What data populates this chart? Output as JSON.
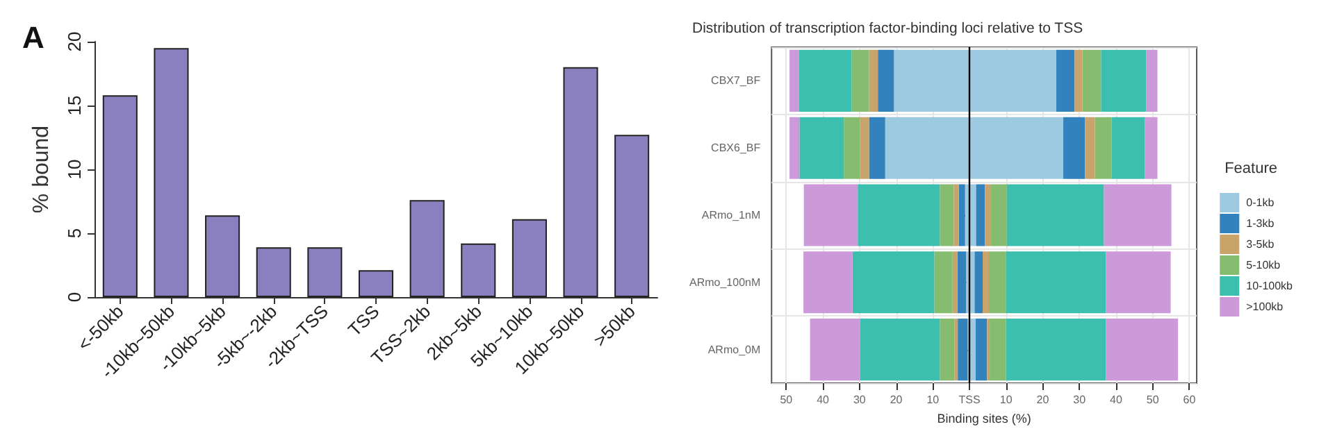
{
  "chart_data": [
    {
      "type": "bar",
      "annotations": [
        "A"
      ],
      "ylabel": "% bound",
      "categories": [
        "<-50kb",
        "-10kb~50kb",
        "-10kb~5kb",
        "-5kb~-2kb",
        "-2kb~TSS",
        "TSS",
        "TSS~2kb",
        "2kb~5kb",
        "5kb~10kb",
        "10kb~50kb",
        ">50kb"
      ],
      "values": [
        15.8,
        19.5,
        6.4,
        3.9,
        3.9,
        2.1,
        7.6,
        4.2,
        6.1,
        18.0,
        12.7
      ],
      "color": "#8b80bf",
      "ylim": [
        0,
        20
      ],
      "yticks": [
        0,
        5,
        10,
        15,
        20
      ],
      "grid": false,
      "legend": false
    },
    {
      "type": "bar",
      "orientation": "horizontal",
      "stacked": true,
      "title": "Distribution of transcription factor-binding loci relative to TSS",
      "xlabel": "Binding sites (%)",
      "legend_title": "Feature",
      "legend": "right",
      "grid": true,
      "categories": [
        "CBX7_BF",
        "CBX6_BF",
        "ARmo_1nM",
        "ARmo_100nM",
        "ARmo_0M"
      ],
      "xlim": [
        -54,
        62
      ],
      "xticks": [
        {
          "value": -50,
          "label": "50"
        },
        {
          "value": -40,
          "label": "40"
        },
        {
          "value": -30,
          "label": "30"
        },
        {
          "value": -20,
          "label": "20"
        },
        {
          "value": -10,
          "label": "10"
        },
        {
          "value": 0,
          "label": "TSS"
        },
        10,
        20,
        30,
        40,
        50,
        60
      ],
      "ref_lines": [
        {
          "axis": "x",
          "value": 0,
          "color": "#000000"
        }
      ],
      "series": [
        {
          "name": "0-1kb",
          "color": "#9ecae1",
          "values": [
            23.7,
            25.6,
            1.8,
            1.4,
            1.7
          ]
        },
        {
          "name": "1-3kb",
          "color": "#3182bd",
          "values": [
            5.0,
            5.9,
            2.4,
            2.2,
            3.1
          ]
        },
        {
          "name": "3-5kb",
          "color": "#c9a46a",
          "values": [
            2.1,
            2.7,
            1.5,
            1.7,
            0.7
          ]
        },
        {
          "name": "5-10kb",
          "color": "#86bc6f",
          "values": [
            5.1,
            4.6,
            4.5,
            4.6,
            4.5
          ]
        },
        {
          "name": "10-100kb",
          "color": "#3dbfb0",
          "values": [
            12.3,
            9.1,
            26.5,
            27.3,
            27.2
          ]
        },
        {
          "name": ">100kb",
          "color": "#cc99d9",
          "values": [
            3.1,
            3.4,
            18.4,
            17.7,
            19.7
          ]
        },
        {
          "color": "#9ecae1",
          "values": [
            -20.6,
            -23.0,
            -1.2,
            -0.9,
            -0.5
          ]
        },
        {
          "color": "#3182bd",
          "values": [
            -4.4,
            -4.4,
            -1.7,
            -2.4,
            -2.7
          ]
        },
        {
          "color": "#c9a46a",
          "values": [
            -2.4,
            -2.5,
            -1.4,
            -1.3,
            -0.9
          ]
        },
        {
          "color": "#86bc6f",
          "values": [
            -4.8,
            -4.4,
            -3.8,
            -5.0,
            -4.0
          ]
        },
        {
          "color": "#3dbfb0",
          "values": [
            -14.4,
            -12.1,
            -22.4,
            -22.3,
            -21.7
          ]
        },
        {
          "color": "#cc99d9",
          "values": [
            -2.5,
            -2.7,
            -14.7,
            -13.4,
            -13.7
          ]
        }
      ]
    }
  ]
}
